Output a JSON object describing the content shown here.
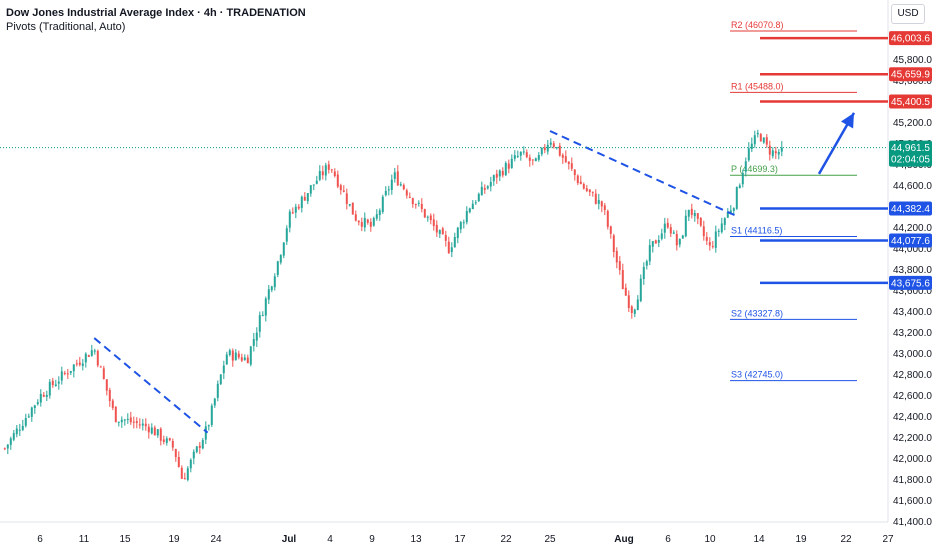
{
  "legend": {
    "title": "Dow Jones Industrial Average Index · 4h · TRADENATION",
    "indicator": "Pivots (Traditional, Auto)"
  },
  "currency_button": "USD",
  "colors": {
    "up": "#26a69a",
    "down": "#ef5350",
    "resistance": "#e53935",
    "support": "#1e53e5",
    "pivot": "#43a047",
    "last_price": "#089981"
  },
  "chart_data": {
    "type": "candlestick",
    "title": "Dow Jones Industrial Average Index · 4h · TRADENATION",
    "x_ticks": [
      "6",
      "11",
      "15",
      "19",
      "24",
      "Jul",
      "4",
      "9",
      "13",
      "17",
      "22",
      "25",
      "Aug",
      "6",
      "10",
      "14",
      "19",
      "22",
      "27"
    ],
    "y_ticks": [
      "46,000.0",
      "45,800.0",
      "45,600.0",
      "45,400.0",
      "45,200.0",
      "45,000.0",
      "44,800.0",
      "44,600.0",
      "44,400.0",
      "44,200.0",
      "44,000.0",
      "43,800.0",
      "43,600.0",
      "43,400.0",
      "43,200.0",
      "43,000.0",
      "42,800.0",
      "42,600.0",
      "42,400.0",
      "42,200.0",
      "42,000.0",
      "41,800.0",
      "41,600.0",
      "41,400.0"
    ],
    "ylim": [
      41400,
      46100
    ],
    "pivots": [
      {
        "label": "R2",
        "value": "46070.8",
        "price": 46070.8
      },
      {
        "label": "R1",
        "value": "45488.0",
        "price": 45488.0
      },
      {
        "label": "P",
        "value": "44699.3",
        "price": 44699.3
      },
      {
        "label": "S1",
        "value": "44116.5",
        "price": 44116.5
      },
      {
        "label": "S2",
        "value": "43327.8",
        "price": 43327.8
      },
      {
        "label": "S3",
        "value": "42745.0",
        "price": 42745.0
      }
    ],
    "levels": [
      {
        "value": "46,003.6",
        "price": 46003.6,
        "kind": "resistance"
      },
      {
        "value": "45,659.9",
        "price": 45659.9,
        "kind": "resistance"
      },
      {
        "value": "45,400.5",
        "price": 45400.5,
        "kind": "resistance"
      },
      {
        "value": "44,382.4",
        "price": 44382.4,
        "kind": "support"
      },
      {
        "value": "44,077.6",
        "price": 44077.6,
        "kind": "support"
      },
      {
        "value": "43,675.6",
        "price": 43675.6,
        "kind": "support"
      }
    ],
    "last_price": {
      "value": "44,961.5",
      "countdown": "02:04:05",
      "price": 44961.5
    },
    "trendlines": [
      {
        "from": [
          "Jun 12",
          43150
        ],
        "to": [
          "Jun 23",
          42250
        ]
      },
      {
        "from": [
          "Jul 25",
          45120
        ],
        "to": [
          "Aug 12",
          44320
        ]
      }
    ],
    "projection_arrow": {
      "from": [
        "Aug 19",
        44750
      ],
      "to": [
        "Aug 22",
        45350
      ]
    },
    "anchors": [
      [
        "Jun 2",
        42100
      ],
      [
        "Jun 6",
        42600
      ],
      [
        "Jun 10",
        42900
      ],
      [
        "Jun 12",
        43050
      ],
      [
        "Jun 14",
        42400
      ],
      [
        "Jun 17",
        42300
      ],
      [
        "Jun 19",
        42100
      ],
      [
        "Jun 20",
        41800
      ],
      [
        "Jun 23",
        42300
      ],
      [
        "Jun 25",
        43000
      ],
      [
        "Jun 27",
        42950
      ],
      [
        "Jun 30",
        43900
      ],
      [
        "Jul 1",
        44300
      ],
      [
        "Jul 3",
        44650
      ],
      [
        "Jul 4",
        44800
      ],
      [
        "Jul 7",
        44300
      ],
      [
        "Jul 9",
        44200
      ],
      [
        "Jul 11",
        44700
      ],
      [
        "Jul 14",
        44300
      ],
      [
        "Jul 16",
        44000
      ],
      [
        "Jul 18",
        44400
      ],
      [
        "Jul 21",
        44700
      ],
      [
        "Jul 23",
        44900
      ],
      [
        "Jul 24",
        44800
      ],
      [
        "Jul 25",
        45050
      ],
      [
        "Jul 28",
        44600
      ],
      [
        "Jul 30",
        44400
      ],
      [
        "Aug 1",
        43600
      ],
      [
        "Aug 2",
        43400
      ],
      [
        "Aug 4",
        44000
      ],
      [
        "Aug 6",
        44250
      ],
      [
        "Aug 7",
        44000
      ],
      [
        "Aug 8",
        44400
      ],
      [
        "Aug 10",
        44000
      ],
      [
        "Aug 11",
        44250
      ],
      [
        "Aug 12",
        44450
      ],
      [
        "Aug 13",
        44900
      ],
      [
        "Aug 14",
        45100
      ],
      [
        "Aug 15",
        44950
      ],
      [
        "Aug 16",
        44900
      ],
      [
        "Aug 17",
        44961.5
      ]
    ]
  }
}
